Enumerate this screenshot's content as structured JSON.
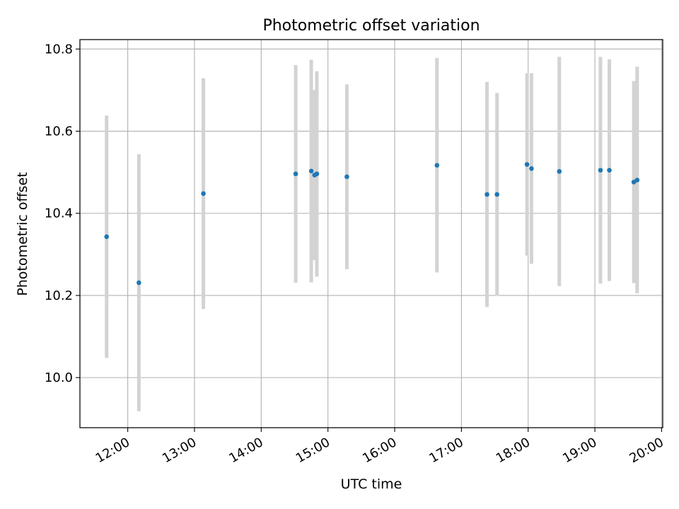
{
  "chart_data": {
    "type": "scatter",
    "title": "Photometric offset variation",
    "xlabel": "UTC time",
    "ylabel": "Photometric offset",
    "grid": true,
    "colors": {
      "points": "#1f77b4",
      "errorbars": "#d3d3d3",
      "grid": "#b0b0b0"
    },
    "xlim": [
      "11:17",
      "20:01"
    ],
    "ylim": [
      9.878,
      10.823
    ],
    "x_ticks": [
      "12:00",
      "13:00",
      "14:00",
      "15:00",
      "16:00",
      "17:00",
      "18:00",
      "19:00",
      "20:00"
    ],
    "y_ticks": [
      "10.0",
      "10.2",
      "10.4",
      "10.6",
      "10.8"
    ],
    "points": [
      {
        "x": "11:41",
        "y": 10.343,
        "yerr": 0.295
      },
      {
        "x": "12:10",
        "y": 10.231,
        "yerr": 0.313
      },
      {
        "x": "13:08",
        "y": 10.448,
        "yerr": 0.281
      },
      {
        "x": "14:31",
        "y": 10.496,
        "yerr": 0.265
      },
      {
        "x": "14:45",
        "y": 10.503,
        "yerr": 0.271
      },
      {
        "x": "14:48",
        "y": 10.493,
        "yerr": 0.207
      },
      {
        "x": "14:50",
        "y": 10.496,
        "yerr": 0.25
      },
      {
        "x": "15:17",
        "y": 10.489,
        "yerr": 0.225
      },
      {
        "x": "16:38",
        "y": 10.517,
        "yerr": 0.261
      },
      {
        "x": "17:23",
        "y": 10.446,
        "yerr": 0.274
      },
      {
        "x": "17:32",
        "y": 10.446,
        "yerr": 0.247
      },
      {
        "x": "17:59",
        "y": 10.519,
        "yerr": 0.222
      },
      {
        "x": "18:03",
        "y": 10.509,
        "yerr": 0.232
      },
      {
        "x": "18:28",
        "y": 10.502,
        "yerr": 0.279
      },
      {
        "x": "19:05",
        "y": 10.505,
        "yerr": 0.276
      },
      {
        "x": "19:13",
        "y": 10.505,
        "yerr": 0.27
      },
      {
        "x": "19:35",
        "y": 10.476,
        "yerr": 0.246
      },
      {
        "x": "19:38",
        "y": 10.481,
        "yerr": 0.276
      }
    ]
  }
}
